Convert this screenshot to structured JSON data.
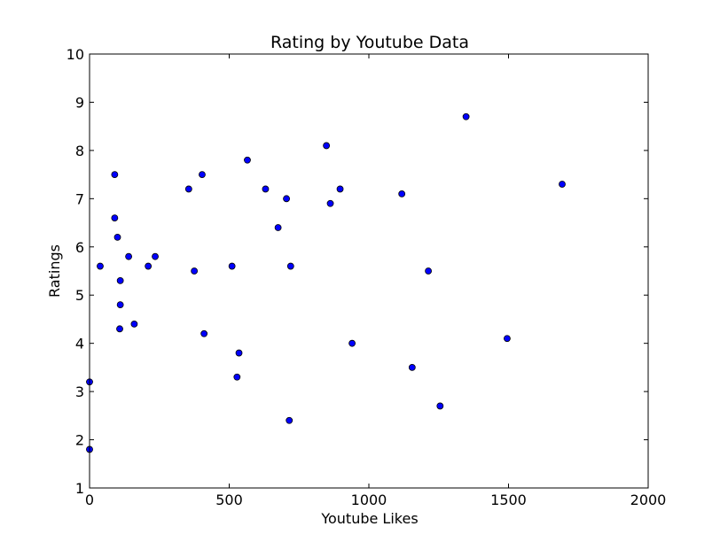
{
  "chart_data": {
    "type": "scatter",
    "title": "Rating by Youtube Data",
    "xlabel": "Youtube Likes",
    "ylabel": "Ratings",
    "xlim": [
      0,
      2000
    ],
    "ylim": [
      1,
      10
    ],
    "xticks": [
      "0",
      "500",
      "1000",
      "1500",
      "2000"
    ],
    "yticks": [
      "1",
      "2",
      "3",
      "4",
      "5",
      "6",
      "7",
      "8",
      "9",
      "10"
    ],
    "marker_color": "#0000ff",
    "series": [
      {
        "name": "Ratings",
        "points": [
          {
            "x": 0,
            "y": 3.2
          },
          {
            "x": 0,
            "y": 1.8
          },
          {
            "x": 38,
            "y": 5.6
          },
          {
            "x": 90,
            "y": 7.5
          },
          {
            "x": 90,
            "y": 6.6
          },
          {
            "x": 100,
            "y": 6.2
          },
          {
            "x": 110,
            "y": 5.3
          },
          {
            "x": 110,
            "y": 4.8
          },
          {
            "x": 108,
            "y": 4.3
          },
          {
            "x": 140,
            "y": 5.8
          },
          {
            "x": 160,
            "y": 4.4
          },
          {
            "x": 210,
            "y": 5.6
          },
          {
            "x": 235,
            "y": 5.8
          },
          {
            "x": 355,
            "y": 7.2
          },
          {
            "x": 375,
            "y": 5.5
          },
          {
            "x": 403,
            "y": 7.5
          },
          {
            "x": 410,
            "y": 4.2
          },
          {
            "x": 510,
            "y": 5.6
          },
          {
            "x": 528,
            "y": 3.3
          },
          {
            "x": 535,
            "y": 3.8
          },
          {
            "x": 565,
            "y": 7.8
          },
          {
            "x": 630,
            "y": 7.2
          },
          {
            "x": 675,
            "y": 6.4
          },
          {
            "x": 705,
            "y": 7.0
          },
          {
            "x": 715,
            "y": 2.4
          },
          {
            "x": 720,
            "y": 5.6
          },
          {
            "x": 848,
            "y": 8.1
          },
          {
            "x": 862,
            "y": 6.9
          },
          {
            "x": 897,
            "y": 7.2
          },
          {
            "x": 940,
            "y": 4.0
          },
          {
            "x": 1118,
            "y": 7.1
          },
          {
            "x": 1155,
            "y": 3.5
          },
          {
            "x": 1213,
            "y": 5.5
          },
          {
            "x": 1255,
            "y": 2.7
          },
          {
            "x": 1348,
            "y": 8.7
          },
          {
            "x": 1495,
            "y": 4.1
          },
          {
            "x": 1692,
            "y": 7.3
          }
        ]
      }
    ]
  }
}
